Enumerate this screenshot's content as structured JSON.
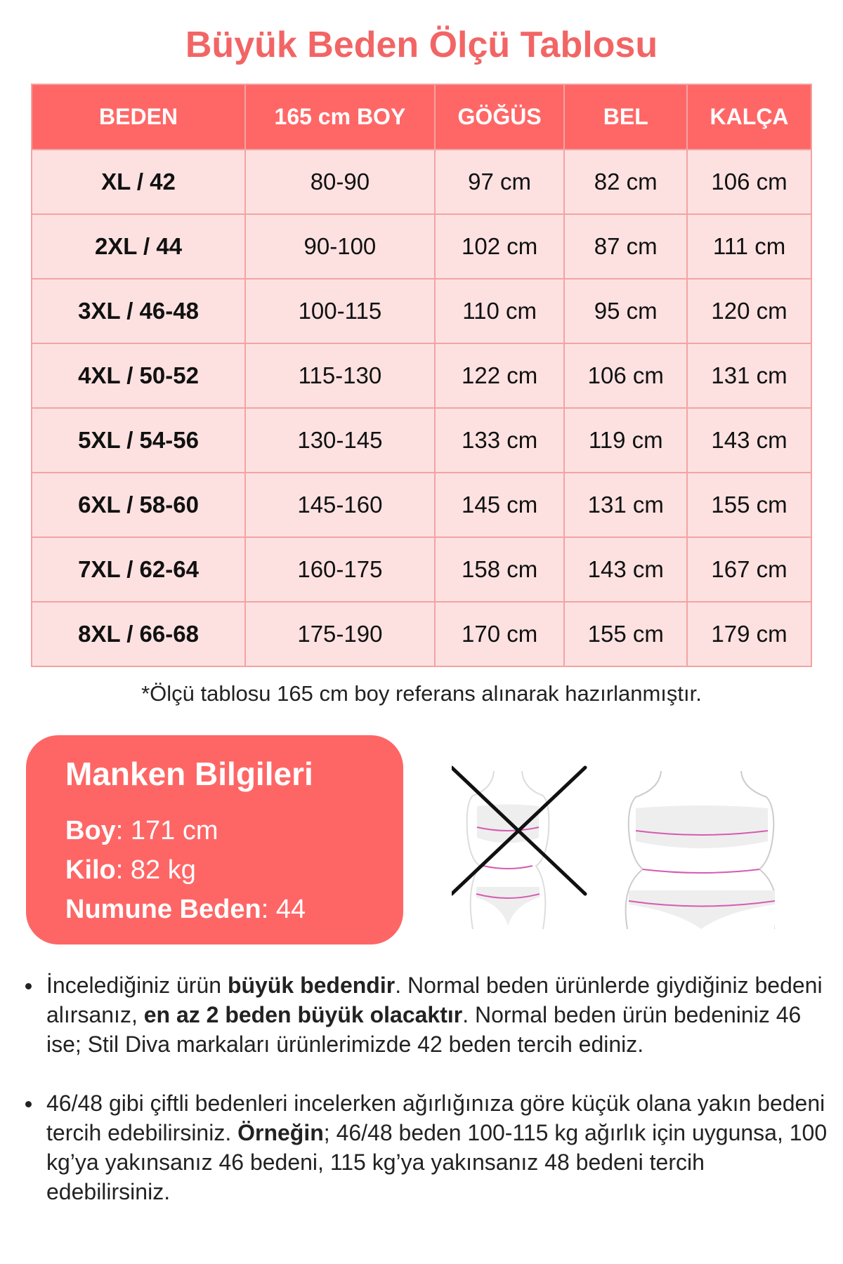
{
  "title": "Büyük Beden Ölçü Tablosu",
  "table": {
    "headers": [
      "BEDEN",
      "165 cm BOY",
      "GÖĞÜS",
      "BEL",
      "KALÇA"
    ],
    "rows": [
      [
        "XL / 42",
        "80-90",
        "97 cm",
        "82 cm",
        "106 cm"
      ],
      [
        "2XL / 44",
        "90-100",
        "102 cm",
        "87 cm",
        "111 cm"
      ],
      [
        "3XL / 46-48",
        "100-115",
        "110 cm",
        "95 cm",
        "120 cm"
      ],
      [
        "4XL / 50-52",
        "115-130",
        "122 cm",
        "106 cm",
        "131 cm"
      ],
      [
        "5XL / 54-56",
        "130-145",
        "133 cm",
        "119 cm",
        "143 cm"
      ],
      [
        "6XL / 58-60",
        "145-160",
        "145 cm",
        "131 cm",
        "155 cm"
      ],
      [
        "7XL / 62-64",
        "160-175",
        "158 cm",
        "143 cm",
        "167 cm"
      ],
      [
        "8XL / 66-68",
        "175-190",
        "170 cm",
        "155 cm",
        "179 cm"
      ]
    ]
  },
  "note": "*Ölçü tablosu 165 cm boy referans alınarak hazırlanmıştır.",
  "manken": {
    "title": "Manken Bilgileri",
    "items": [
      {
        "label": "Boy",
        "value": ": 171 cm"
      },
      {
        "label": "Kilo",
        "value": ": 82 kg"
      },
      {
        "label": "Numune Beden",
        "value": ": 44"
      }
    ]
  },
  "bullets": [
    {
      "parts": [
        "İncelediğiniz ürün ",
        "büyük bedendir",
        ". Normal beden ürünlerde giydiğiniz bedeni alırsanız, ",
        "en az 2 beden büyük olacaktır",
        ". Normal beden ürün bedeniniz 46 ise; Stil Diva markaları ürünlerimizde 42 beden tercih ediniz."
      ]
    },
    {
      "parts": [
        "46/48 gibi çiftli bedenleri incelerken ağırlığınıza göre küçük olana yakın bedeni tercih edebilirsiniz. ",
        "Örneğin",
        "; 46/48 beden 100-115 kg ağırlık için uygunsa, 100 kg’ya yakınsanız 46 bedeni, 115 kg’ya yakınsanız 48 bedeni tercih edebilirsiniz."
      ]
    }
  ],
  "colors": {
    "accent": "#ff6767",
    "row": "#fde1e1",
    "border": "#f3a3a3",
    "title": "#f26565"
  }
}
